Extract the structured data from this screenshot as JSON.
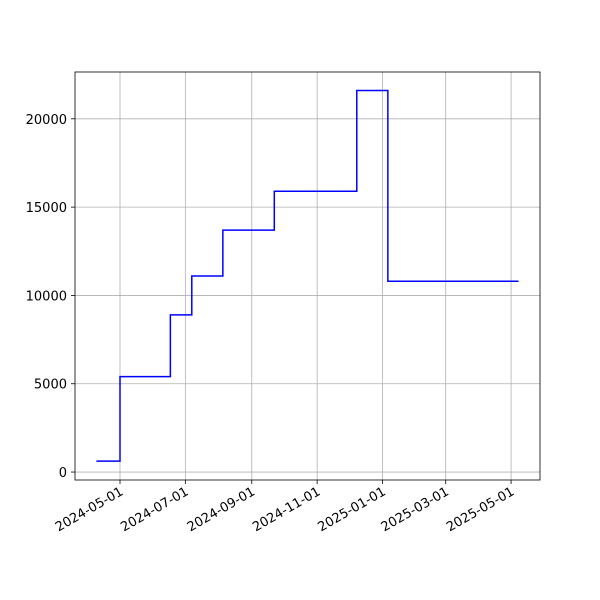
{
  "chart_data": {
    "type": "line",
    "x": [
      "2024-04-09",
      "2024-05-01",
      "2024-05-01",
      "2024-06-17",
      "2024-06-17",
      "2024-07-07",
      "2024-07-07",
      "2024-08-05",
      "2024-08-05",
      "2024-09-22",
      "2024-09-22",
      "2024-12-08",
      "2024-12-08",
      "2025-01-06",
      "2025-01-06",
      "2025-05-08"
    ],
    "values": [
      620,
      620,
      5400,
      5400,
      8900,
      8900,
      11100,
      11100,
      13700,
      13700,
      15900,
      15900,
      21600,
      21600,
      10800,
      10800
    ],
    "color": "#0000ff",
    "xlim": [
      "2024-03-20",
      "2025-05-28"
    ],
    "xticks": [
      "2024-05-01",
      "2024-07-01",
      "2024-09-01",
      "2024-11-01",
      "2025-01-01",
      "2025-03-01",
      "2025-05-01"
    ],
    "ylim": [
      -450,
      22650
    ],
    "yticks": [
      0,
      5000,
      10000,
      15000,
      20000
    ],
    "grid": true
  }
}
